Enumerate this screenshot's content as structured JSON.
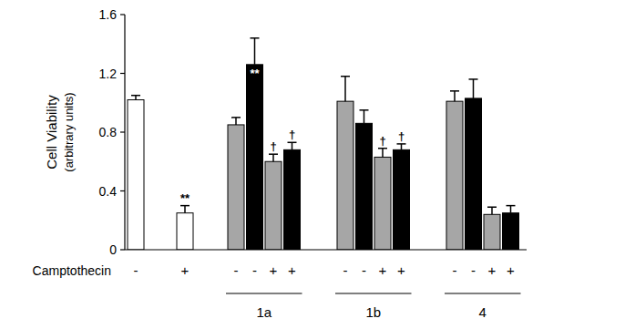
{
  "chart_data": {
    "type": "bar",
    "y_label": "Cell Viability",
    "y_label_sub": "(arbitrary units)",
    "x_label": "Camptothecin",
    "categories": [
      "-",
      "+",
      "-",
      "-",
      "+",
      "+",
      "-",
      "-",
      "+",
      "+",
      "-",
      "-",
      "+",
      "+"
    ],
    "values": [
      1.02,
      0.25,
      0.85,
      1.26,
      0.6,
      0.68,
      1.01,
      0.86,
      0.63,
      0.68,
      1.01,
      1.03,
      0.24,
      0.25
    ],
    "errors": [
      0.03,
      0.05,
      0.05,
      0.18,
      0.05,
      0.05,
      0.17,
      0.09,
      0.06,
      0.04,
      0.07,
      0.13,
      0.05,
      0.05
    ],
    "colors": [
      "#ffffff",
      "#ffffff",
      "#a6a6a6",
      "#000000",
      "#a6a6a6",
      "#000000",
      "#a6a6a6",
      "#000000",
      "#a6a6a6",
      "#000000",
      "#a6a6a6",
      "#000000",
      "#a6a6a6",
      "#000000"
    ],
    "groups": [
      {
        "label": "1a",
        "start": 2,
        "end": 5
      },
      {
        "label": "1b",
        "start": 6,
        "end": 9
      },
      {
        "label": "4",
        "start": 10,
        "end": 13
      }
    ],
    "annotations": [
      {
        "index": 1,
        "text": "**",
        "position": "above"
      },
      {
        "index": 3,
        "text": "**",
        "position": "inside"
      },
      {
        "index": 4,
        "text": "†",
        "position": "above"
      },
      {
        "index": 5,
        "text": "†",
        "position": "above"
      },
      {
        "index": 8,
        "text": "†",
        "position": "above"
      },
      {
        "index": 9,
        "text": "†",
        "position": "above"
      }
    ],
    "ylim": [
      0,
      1.6
    ],
    "yticks": [
      0,
      0.4,
      0.8,
      1.2,
      1.6
    ],
    "grid": false
  }
}
